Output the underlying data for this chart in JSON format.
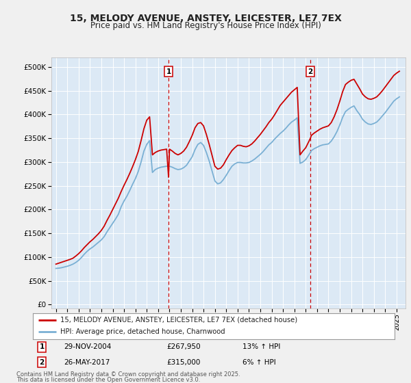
{
  "title": "15, MELODY AVENUE, ANSTEY, LEICESTER, LE7 7EX",
  "subtitle": "Price paid vs. HM Land Registry's House Price Index (HPI)",
  "fig_bg_color": "#f0f0f0",
  "plot_bg_color": "#dce9f5",
  "yticks": [
    0,
    50000,
    100000,
    150000,
    200000,
    250000,
    300000,
    350000,
    400000,
    450000,
    500000
  ],
  "ytick_labels": [
    "£0",
    "£50K",
    "£100K",
    "£150K",
    "£200K",
    "£250K",
    "£300K",
    "£350K",
    "£400K",
    "£450K",
    "£500K"
  ],
  "ylim": [
    -8000,
    520000
  ],
  "xlim_start": 1994.6,
  "xlim_end": 2025.8,
  "xticks": [
    1995,
    1996,
    1997,
    1998,
    1999,
    2000,
    2001,
    2002,
    2003,
    2004,
    2005,
    2006,
    2007,
    2008,
    2009,
    2010,
    2011,
    2012,
    2013,
    2014,
    2015,
    2016,
    2017,
    2018,
    2019,
    2020,
    2021,
    2022,
    2023,
    2024,
    2025
  ],
  "legend_line1": "15, MELODY AVENUE, ANSTEY, LEICESTER, LE7 7EX (detached house)",
  "legend_line2": "HPI: Average price, detached house, Charnwood",
  "sale1_date": 2004.92,
  "sale2_date": 2017.41,
  "red_color": "#cc0000",
  "blue_color": "#7ab0d4",
  "grid_color": "#ffffff",
  "hpi_dates": [
    1995.0,
    1995.25,
    1995.5,
    1995.75,
    1996.0,
    1996.25,
    1996.5,
    1996.75,
    1997.0,
    1997.25,
    1997.5,
    1997.75,
    1998.0,
    1998.25,
    1998.5,
    1998.75,
    1999.0,
    1999.25,
    1999.5,
    1999.75,
    2000.0,
    2000.25,
    2000.5,
    2000.75,
    2001.0,
    2001.25,
    2001.5,
    2001.75,
    2002.0,
    2002.25,
    2002.5,
    2002.75,
    2003.0,
    2003.25,
    2003.5,
    2003.75,
    2004.0,
    2004.25,
    2004.5,
    2004.75,
    2004.92,
    2005.0,
    2005.25,
    2005.5,
    2005.75,
    2006.0,
    2006.25,
    2006.5,
    2006.75,
    2007.0,
    2007.25,
    2007.5,
    2007.75,
    2008.0,
    2008.25,
    2008.5,
    2008.75,
    2009.0,
    2009.25,
    2009.5,
    2009.75,
    2010.0,
    2010.25,
    2010.5,
    2010.75,
    2011.0,
    2011.25,
    2011.5,
    2011.75,
    2012.0,
    2012.25,
    2012.5,
    2012.75,
    2013.0,
    2013.25,
    2013.5,
    2013.75,
    2014.0,
    2014.25,
    2014.5,
    2014.75,
    2015.0,
    2015.25,
    2015.5,
    2015.75,
    2016.0,
    2016.25,
    2016.5,
    2016.75,
    2017.0,
    2017.25,
    2017.41,
    2017.5,
    2017.75,
    2018.0,
    2018.25,
    2018.5,
    2018.75,
    2019.0,
    2019.25,
    2019.5,
    2019.75,
    2020.0,
    2020.25,
    2020.5,
    2020.75,
    2021.0,
    2021.25,
    2021.5,
    2021.75,
    2022.0,
    2022.25,
    2022.5,
    2022.75,
    2023.0,
    2023.25,
    2023.5,
    2023.75,
    2024.0,
    2024.25,
    2024.5,
    2024.75,
    2025.0,
    2025.25
  ],
  "hpi_vals": [
    76000,
    76500,
    77500,
    79000,
    80500,
    82500,
    85000,
    88500,
    93000,
    99000,
    106000,
    112000,
    117000,
    121000,
    126000,
    131000,
    136000,
    143000,
    153000,
    162000,
    171000,
    180000,
    190000,
    206000,
    218000,
    228000,
    240000,
    253000,
    265000,
    280000,
    300000,
    323000,
    337000,
    345000,
    278000,
    284000,
    287000,
    289000,
    290000,
    291000,
    291500,
    291000,
    289000,
    286000,
    284000,
    285000,
    288000,
    293000,
    302000,
    311000,
    326000,
    337000,
    341000,
    335000,
    320000,
    302000,
    281000,
    260000,
    254000,
    256000,
    263000,
    272000,
    282000,
    291000,
    296000,
    299000,
    299000,
    298000,
    298000,
    299000,
    302000,
    306000,
    311000,
    316000,
    322000,
    329000,
    336000,
    341000,
    348000,
    354000,
    360000,
    365000,
    371000,
    378000,
    384000,
    388000,
    393000,
    297000,
    300000,
    305000,
    314000,
    320000,
    324000,
    328000,
    331000,
    334000,
    336000,
    337000,
    338000,
    344000,
    353000,
    364000,
    378000,
    394000,
    406000,
    411000,
    415000,
    418000,
    408000,
    400000,
    390000,
    384000,
    380000,
    379000,
    381000,
    384000,
    390000,
    397000,
    404000,
    412000,
    420000,
    428000,
    433000,
    437000
  ],
  "red_dates": [
    1995.0,
    1995.25,
    1995.5,
    1995.75,
    1996.0,
    1996.25,
    1996.5,
    1996.75,
    1997.0,
    1997.25,
    1997.5,
    1997.75,
    1998.0,
    1998.25,
    1998.5,
    1998.75,
    1999.0,
    1999.25,
    1999.5,
    1999.75,
    2000.0,
    2000.25,
    2000.5,
    2000.75,
    2001.0,
    2001.25,
    2001.5,
    2001.75,
    2002.0,
    2002.25,
    2002.5,
    2002.75,
    2003.0,
    2003.25,
    2003.5,
    2003.75,
    2004.0,
    2004.25,
    2004.5,
    2004.75,
    2004.92,
    2005.0,
    2005.25,
    2005.5,
    2005.75,
    2006.0,
    2006.25,
    2006.5,
    2006.75,
    2007.0,
    2007.25,
    2007.5,
    2007.75,
    2008.0,
    2008.25,
    2008.5,
    2008.75,
    2009.0,
    2009.25,
    2009.5,
    2009.75,
    2010.0,
    2010.25,
    2010.5,
    2010.75,
    2011.0,
    2011.25,
    2011.5,
    2011.75,
    2012.0,
    2012.25,
    2012.5,
    2012.75,
    2013.0,
    2013.25,
    2013.5,
    2013.75,
    2014.0,
    2014.25,
    2014.5,
    2014.75,
    2015.0,
    2015.25,
    2015.5,
    2015.75,
    2016.0,
    2016.25,
    2016.5,
    2016.75,
    2017.0,
    2017.25,
    2017.41,
    2017.5,
    2017.75,
    2018.0,
    2018.25,
    2018.5,
    2018.75,
    2019.0,
    2019.25,
    2019.5,
    2019.75,
    2020.0,
    2020.25,
    2020.5,
    2020.75,
    2021.0,
    2021.25,
    2021.5,
    2021.75,
    2022.0,
    2022.25,
    2022.5,
    2022.75,
    2023.0,
    2023.25,
    2023.5,
    2023.75,
    2024.0,
    2024.25,
    2024.5,
    2024.75,
    2025.0,
    2025.25
  ],
  "red_vals": [
    85000,
    87000,
    89000,
    91000,
    93000,
    95000,
    97500,
    102000,
    107000,
    113000,
    120000,
    126000,
    132000,
    137000,
    143000,
    149000,
    156000,
    165000,
    177000,
    188000,
    200000,
    212000,
    224000,
    238000,
    251000,
    263000,
    276000,
    290000,
    305000,
    322000,
    345000,
    370000,
    388000,
    395000,
    315000,
    320000,
    323000,
    325000,
    326000,
    327000,
    267950,
    327000,
    323000,
    318000,
    315000,
    318000,
    323000,
    331000,
    343000,
    356000,
    372000,
    381000,
    383000,
    376000,
    358000,
    337000,
    314000,
    291000,
    285000,
    287000,
    294000,
    305000,
    315000,
    324000,
    330000,
    335000,
    335000,
    333000,
    332000,
    334000,
    338000,
    344000,
    351000,
    358000,
    366000,
    374000,
    383000,
    390000,
    399000,
    409000,
    419000,
    426000,
    433000,
    440000,
    447000,
    452000,
    457000,
    315000,
    323000,
    330000,
    342000,
    350000,
    356000,
    361000,
    365000,
    369000,
    372000,
    374000,
    376000,
    383000,
    395000,
    410000,
    428000,
    448000,
    463000,
    468000,
    472000,
    474000,
    464000,
    454000,
    443000,
    437000,
    433000,
    432000,
    434000,
    437000,
    443000,
    450000,
    458000,
    466000,
    474000,
    482000,
    487000,
    491000
  ],
  "footer": "Contains HM Land Registry data © Crown copyright and database right 2025.\nThis data is licensed under the Open Government Licence v3.0."
}
